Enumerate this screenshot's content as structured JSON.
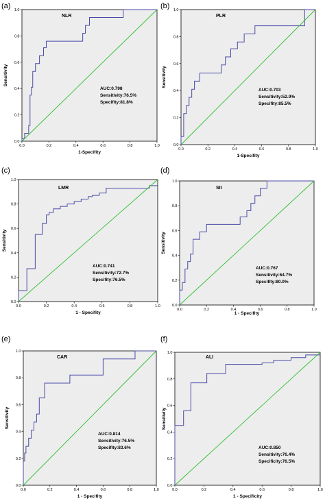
{
  "chart_data": [
    {
      "type": "line",
      "panel_label": "(a)",
      "title": "NLR",
      "xlabel": "1-Specifity",
      "ylabel": "Sensitivity",
      "xlim": [
        0,
        1
      ],
      "ylim": [
        0,
        1
      ],
      "xticks": [
        "0.0",
        "0.2",
        "0.4",
        "0.6",
        "0.8",
        "1.0"
      ],
      "yticks": [
        "0.0",
        "0.2",
        "0.4",
        "0.6",
        "0.8",
        "1.0"
      ],
      "annotations": [
        "AUC:0.798",
        "Sensitivity:76.5%",
        "Specifity:81.8%"
      ],
      "series": [
        {
          "type": "roc",
          "color": "#4a4aa8",
          "x": [
            0,
            0,
            0.02,
            0.02,
            0.05,
            0.05,
            0.06,
            0.06,
            0.07,
            0.07,
            0.08,
            0.08,
            0.1,
            0.1,
            0.13,
            0.13,
            0.16,
            0.16,
            0.18,
            0.18,
            0.45,
            0.45,
            0.47,
            0.47,
            0.5,
            0.5,
            0.75,
            0.75,
            1.0
          ],
          "y": [
            0,
            0.02,
            0.02,
            0.06,
            0.06,
            0.12,
            0.12,
            0.35,
            0.35,
            0.41,
            0.41,
            0.53,
            0.53,
            0.59,
            0.59,
            0.65,
            0.65,
            0.71,
            0.71,
            0.76,
            0.76,
            0.82,
            0.82,
            0.88,
            0.88,
            0.94,
            0.94,
            1.0,
            1.0
          ]
        },
        {
          "type": "diagonal",
          "color": "#2ec02e",
          "x": [
            0,
            1
          ],
          "y": [
            0,
            1
          ]
        }
      ]
    },
    {
      "type": "line",
      "panel_label": "(b)",
      "title": "PLR",
      "xlabel": "1-Specifity",
      "ylabel": "Sensitivity",
      "xlim": [
        0,
        1
      ],
      "ylim": [
        0,
        1
      ],
      "xticks": [
        "0.0",
        "0.2",
        "0.4",
        "0.6",
        "0.8",
        "1.0"
      ],
      "yticks": [
        "0.0",
        "0.2",
        "0.4",
        "0.6",
        "0.8",
        "1.0"
      ],
      "annotations": [
        "AUC:0.703",
        "Sensitivity:52.9%",
        "Specifity:85.5%"
      ],
      "series": [
        {
          "type": "roc",
          "color": "#4a4aa8",
          "x": [
            0,
            0,
            0.02,
            0.02,
            0.04,
            0.04,
            0.06,
            0.06,
            0.08,
            0.08,
            0.1,
            0.1,
            0.14,
            0.14,
            0.3,
            0.3,
            0.33,
            0.33,
            0.37,
            0.37,
            0.42,
            0.42,
            0.47,
            0.47,
            0.55,
            0.55,
            0.92,
            0.92,
            1.0
          ],
          "y": [
            0,
            0.06,
            0.06,
            0.23,
            0.23,
            0.29,
            0.29,
            0.35,
            0.35,
            0.41,
            0.41,
            0.47,
            0.47,
            0.53,
            0.53,
            0.59,
            0.59,
            0.65,
            0.65,
            0.71,
            0.71,
            0.76,
            0.76,
            0.82,
            0.82,
            0.88,
            0.88,
            1.0,
            1.0
          ]
        },
        {
          "type": "diagonal",
          "color": "#2ec02e",
          "x": [
            0,
            1
          ],
          "y": [
            0,
            1
          ]
        }
      ]
    },
    {
      "type": "line",
      "panel_label": "(c)",
      "title": "LMR",
      "xlabel": "1 - Specifity",
      "ylabel": "Sensitivity",
      "xlim": [
        0,
        1
      ],
      "ylim": [
        0,
        1
      ],
      "xticks": [
        "0.0",
        "0.2",
        "0.4",
        "0.6",
        "0.8",
        "1.0"
      ],
      "yticks": [
        "0.0",
        "0.2",
        "0.4",
        "0.6",
        "0.8",
        "1.0"
      ],
      "annotations": [
        "AUC:0.741",
        "Sensitivity:72.7%",
        "Specifity:76.5%"
      ],
      "series": [
        {
          "type": "roc",
          "color": "#4a4aa8",
          "x": [
            0,
            0,
            0.06,
            0.06,
            0.12,
            0.12,
            0.17,
            0.17,
            0.2,
            0.2,
            0.22,
            0.22,
            0.25,
            0.25,
            0.3,
            0.3,
            0.35,
            0.35,
            0.4,
            0.4,
            0.45,
            0.45,
            0.5,
            0.5,
            0.53,
            0.53,
            0.58,
            0.58,
            0.63,
            0.63,
            0.94,
            0.94,
            1.0
          ],
          "y": [
            0,
            0.09,
            0.09,
            0.27,
            0.27,
            0.55,
            0.55,
            0.64,
            0.64,
            0.71,
            0.71,
            0.73,
            0.73,
            0.76,
            0.76,
            0.78,
            0.78,
            0.8,
            0.8,
            0.82,
            0.82,
            0.84,
            0.84,
            0.86,
            0.86,
            0.87,
            0.87,
            0.89,
            0.89,
            0.93,
            0.93,
            0.95,
            0.95
          ]
        },
        {
          "type": "diagonal",
          "color": "#2ec02e",
          "x": [
            0,
            1
          ],
          "y": [
            0,
            1
          ]
        }
      ]
    },
    {
      "type": "line",
      "panel_label": "(d)",
      "title": "SII",
      "xlabel": "1 - Specifity",
      "ylabel": "Sensitivity",
      "xlim": [
        0,
        1
      ],
      "ylim": [
        0,
        1
      ],
      "xticks": [
        "0.0",
        "0.2",
        "0.4",
        "0.6",
        "0.8",
        "1.0"
      ],
      "yticks": [
        "0.0",
        "0.2",
        "0.4",
        "0.6",
        "0.8",
        "1.0"
      ],
      "annotations": [
        "AUC:0.767",
        "Sensitivity:64.7%",
        "Specifity:80.0%"
      ],
      "series": [
        {
          "type": "roc",
          "color": "#4a4aa8",
          "x": [
            0,
            0,
            0.02,
            0.02,
            0.04,
            0.04,
            0.06,
            0.06,
            0.08,
            0.08,
            0.1,
            0.1,
            0.15,
            0.15,
            0.2,
            0.2,
            0.45,
            0.45,
            0.5,
            0.5,
            0.53,
            0.53,
            0.56,
            0.56,
            0.6,
            0.6,
            0.65,
            0.65,
            1.0
          ],
          "y": [
            0,
            0.12,
            0.12,
            0.18,
            0.18,
            0.29,
            0.29,
            0.35,
            0.35,
            0.41,
            0.41,
            0.53,
            0.53,
            0.59,
            0.59,
            0.65,
            0.65,
            0.71,
            0.71,
            0.76,
            0.76,
            0.82,
            0.82,
            0.88,
            0.88,
            0.94,
            0.94,
            1.0,
            1.0
          ]
        },
        {
          "type": "diagonal",
          "color": "#2ec02e",
          "x": [
            0,
            1
          ],
          "y": [
            0,
            1
          ]
        }
      ]
    },
    {
      "type": "line",
      "panel_label": "(e)",
      "title": "CAR",
      "xlabel": "1 - Specifity",
      "ylabel": "Sensitivity",
      "xlim": [
        0,
        1
      ],
      "ylim": [
        0,
        1
      ],
      "xticks": [
        "0.0",
        "0.2",
        "0.4",
        "0.6",
        "0.8",
        "1.0"
      ],
      "yticks": [
        "0.0",
        "0.2",
        "0.4",
        "0.6",
        "0.8",
        "1.0"
      ],
      "annotations": [
        "AUC:0.814",
        "Sensitivity:76.5%",
        "Specifity:83.6%"
      ],
      "series": [
        {
          "type": "roc",
          "color": "#4a4aa8",
          "x": [
            0,
            0,
            0.01,
            0.01,
            0.02,
            0.02,
            0.04,
            0.04,
            0.06,
            0.06,
            0.08,
            0.08,
            0.1,
            0.1,
            0.12,
            0.12,
            0.16,
            0.16,
            0.35,
            0.35,
            0.6,
            0.6,
            0.84,
            0.84,
            1.0
          ],
          "y": [
            0,
            0.18,
            0.18,
            0.24,
            0.24,
            0.29,
            0.29,
            0.35,
            0.35,
            0.41,
            0.41,
            0.47,
            0.47,
            0.53,
            0.53,
            0.65,
            0.65,
            0.76,
            0.76,
            0.82,
            0.82,
            0.94,
            0.94,
            1.0,
            1.0
          ]
        },
        {
          "type": "diagonal",
          "color": "#2ec02e",
          "x": [
            0,
            1
          ],
          "y": [
            0,
            1
          ]
        }
      ]
    },
    {
      "type": "line",
      "panel_label": "(f)",
      "title": "ALI",
      "xlabel": "1 - Specificity",
      "ylabel": "Sensitivity",
      "xlim": [
        0,
        1
      ],
      "ylim": [
        0,
        1
      ],
      "xticks": [
        "0.0",
        "0.2",
        "0.4",
        "0.6",
        "0.8",
        "1.0"
      ],
      "yticks": [
        "0.0",
        "0.2",
        "0.4",
        "0.6",
        "0.8",
        "1.0"
      ],
      "annotations": [
        "AUC:0.850",
        "Sensitivity:76.4%",
        "Specificity:76.5%"
      ],
      "series": [
        {
          "type": "roc",
          "color": "#4a4aa8",
          "x": [
            0,
            0,
            0.06,
            0.06,
            0.11,
            0.11,
            0.22,
            0.22,
            0.35,
            0.35,
            0.6,
            0.6,
            0.68,
            0.68,
            0.8,
            0.8,
            0.9,
            0.9,
            1.0
          ],
          "y": [
            0,
            0.45,
            0.45,
            0.56,
            0.56,
            0.77,
            0.77,
            0.84,
            0.84,
            0.91,
            0.91,
            0.92,
            0.92,
            0.94,
            0.94,
            0.96,
            0.96,
            0.98,
            0.98
          ]
        },
        {
          "type": "diagonal",
          "color": "#2ec02e",
          "x": [
            0,
            1
          ],
          "y": [
            0,
            1
          ]
        }
      ]
    }
  ],
  "colors": {
    "plot_background": "#ededed",
    "roc_curve": "#4a4aa8",
    "reference_line": "#2ec02e",
    "axis": "#000000"
  }
}
